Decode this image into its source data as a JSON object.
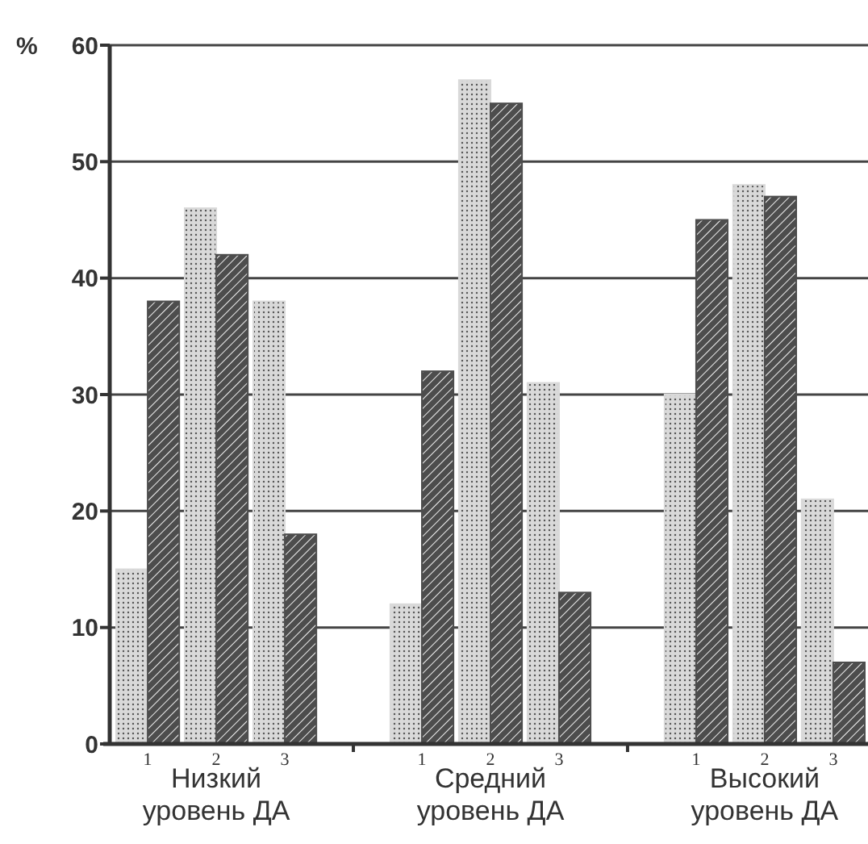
{
  "chart_data": {
    "type": "bar",
    "ylabel": "%",
    "categories": [
      "1",
      "2",
      "3",
      null,
      "1",
      "2",
      "3",
      null,
      "1",
      "2",
      "3"
    ],
    "series": [
      {
        "color": "#d9d9d9",
        "values": [
          15,
          46,
          38,
          null,
          12,
          57,
          31,
          null,
          30,
          48,
          21
        ]
      },
      {
        "color": "#4d4d4d",
        "values": [
          38,
          42,
          18,
          null,
          32,
          55,
          13,
          null,
          45,
          47,
          7
        ]
      }
    ],
    "ylim": [
      0,
      60
    ],
    "yticks": [
      0,
      10,
      20,
      30,
      40,
      50,
      60
    ],
    "grid": "y",
    "annotations": [
      "Низкий уровень ДА",
      "Средний уровень ДА",
      "Высокий уровень ДА"
    ]
  }
}
